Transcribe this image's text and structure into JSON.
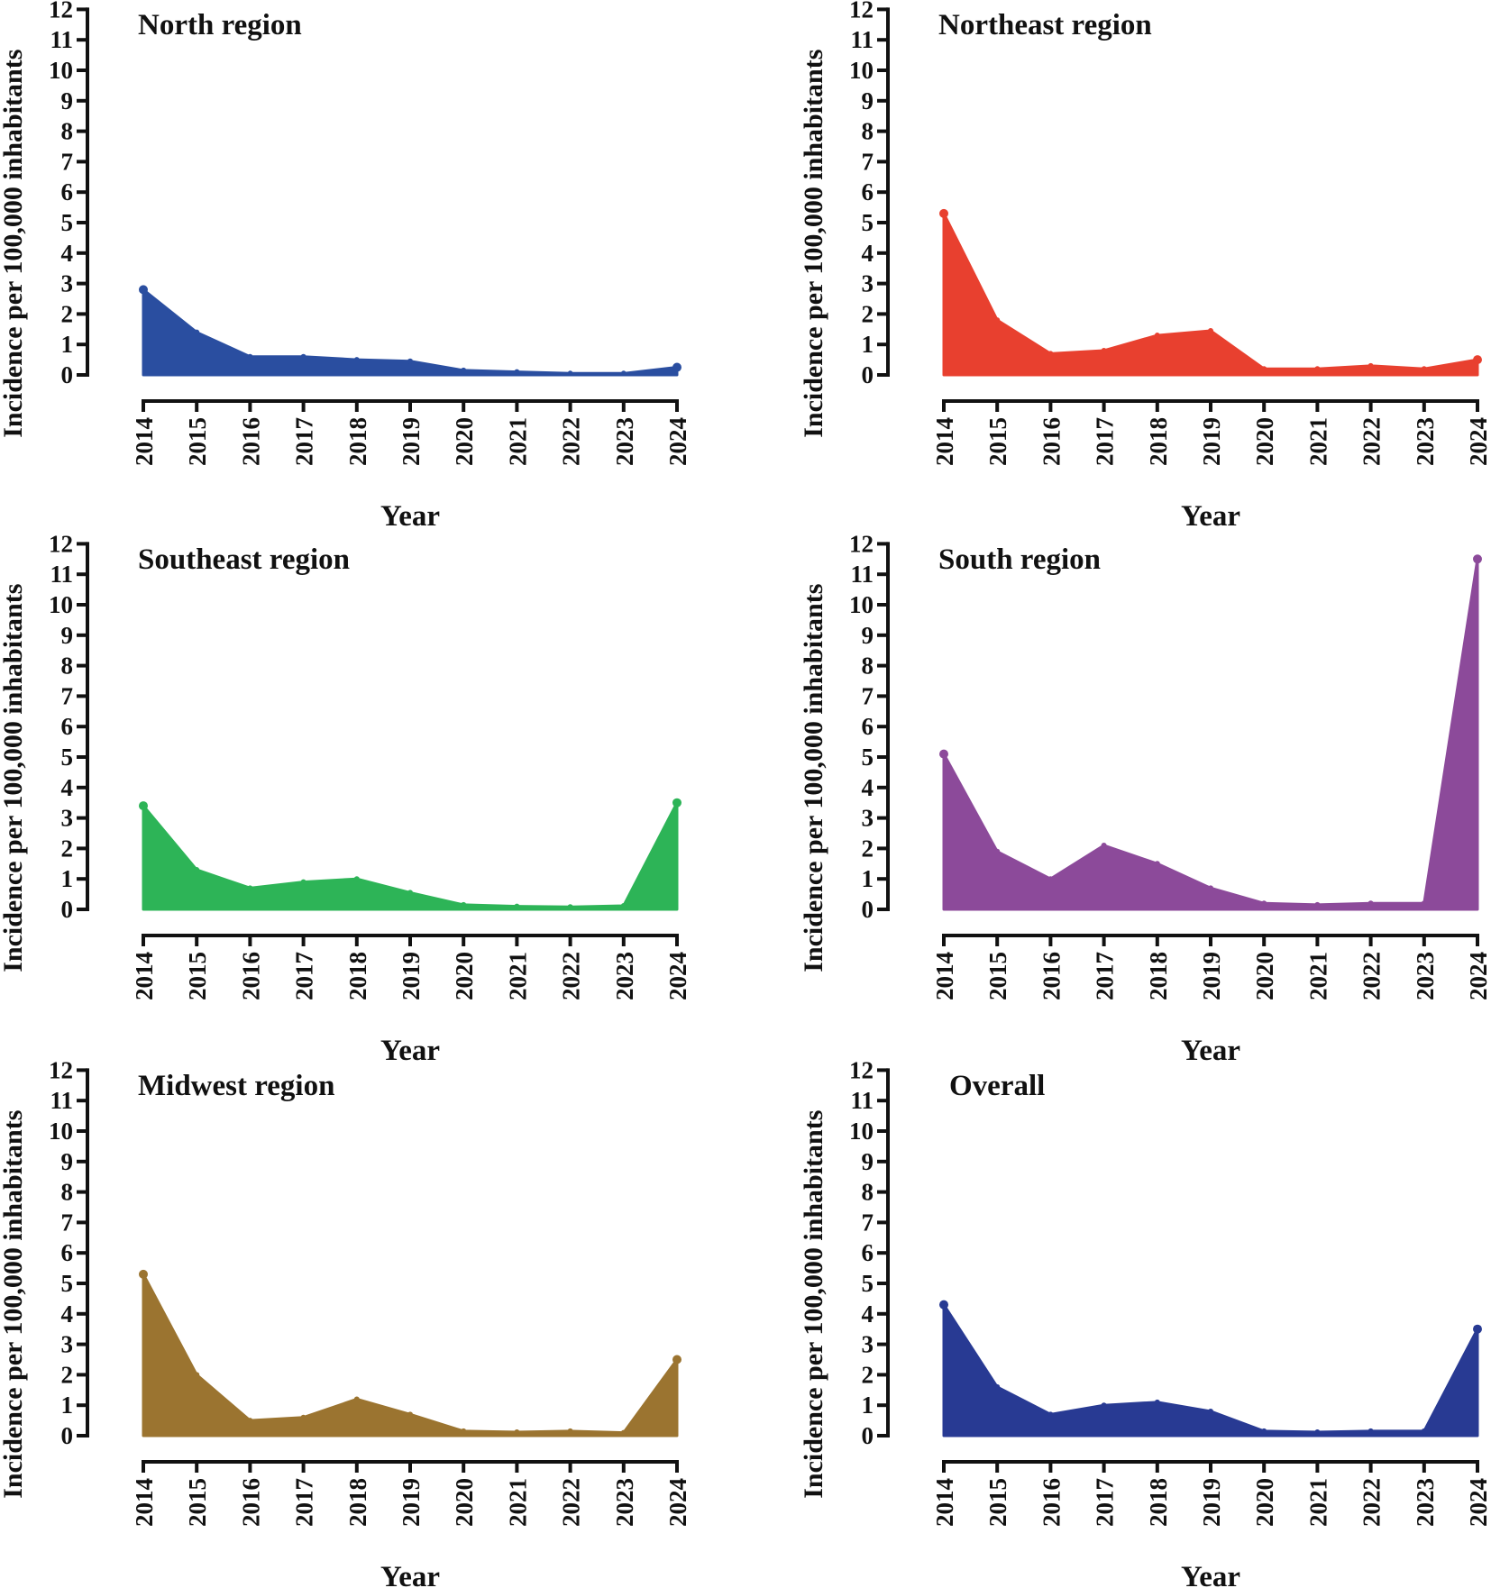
{
  "figure": {
    "y_axis_label": "Incidence per 100,000 inhabitants",
    "x_axis_label": "Year"
  },
  "chart_data": [
    {
      "type": "area",
      "title": "North region",
      "color": "#2a4ea0",
      "x": [
        "2014",
        "2015",
        "2016",
        "2017",
        "2018",
        "2019",
        "2020",
        "2021",
        "2022",
        "2023",
        "2024"
      ],
      "values": [
        2.8,
        1.4,
        0.6,
        0.6,
        0.5,
        0.45,
        0.15,
        0.1,
        0.05,
        0.05,
        0.25
      ],
      "xlabel": "Year",
      "ylabel": "Incidence per 100,000 inhabitants",
      "ylim": [
        0,
        12
      ],
      "yticks": [
        "0",
        "1",
        "2",
        "3",
        "4",
        "5",
        "6",
        "7",
        "8",
        "9",
        "10",
        "11",
        "12"
      ]
    },
    {
      "type": "area",
      "title": "Northeast region",
      "color": "#e8402f",
      "x": [
        "2014",
        "2015",
        "2016",
        "2017",
        "2018",
        "2019",
        "2020",
        "2021",
        "2022",
        "2023",
        "2024"
      ],
      "values": [
        5.3,
        1.8,
        0.7,
        0.8,
        1.3,
        1.45,
        0.2,
        0.2,
        0.3,
        0.2,
        0.5
      ],
      "xlabel": "Year",
      "ylabel": "Incidence per 100,000 inhabitants",
      "ylim": [
        0,
        12
      ],
      "yticks": [
        "0",
        "1",
        "2",
        "3",
        "4",
        "5",
        "6",
        "7",
        "8",
        "9",
        "10",
        "11",
        "12"
      ]
    },
    {
      "type": "area",
      "title": "Southeast region",
      "color": "#2db457",
      "x": [
        "2014",
        "2015",
        "2016",
        "2017",
        "2018",
        "2019",
        "2020",
        "2021",
        "2022",
        "2023",
        "2024"
      ],
      "values": [
        3.4,
        1.3,
        0.7,
        0.9,
        1.0,
        0.55,
        0.15,
        0.1,
        0.08,
        0.12,
        3.5
      ],
      "xlabel": "Year",
      "ylabel": "Incidence per 100,000 inhabitants",
      "ylim": [
        0,
        12
      ],
      "yticks": [
        "0",
        "1",
        "2",
        "3",
        "4",
        "5",
        "6",
        "7",
        "8",
        "9",
        "10",
        "11",
        "12"
      ]
    },
    {
      "type": "area",
      "title": "South region",
      "color": "#8c4a9a",
      "x": [
        "2014",
        "2015",
        "2016",
        "2017",
        "2018",
        "2019",
        "2020",
        "2021",
        "2022",
        "2023",
        "2024"
      ],
      "values": [
        5.1,
        1.9,
        1.0,
        2.1,
        1.5,
        0.7,
        0.2,
        0.15,
        0.2,
        0.2,
        11.5
      ],
      "xlabel": "Year",
      "ylabel": "Incidence per 100,000 inhabitants",
      "ylim": [
        0,
        12
      ],
      "yticks": [
        "0",
        "1",
        "2",
        "3",
        "4",
        "5",
        "6",
        "7",
        "8",
        "9",
        "10",
        "11",
        "12"
      ]
    },
    {
      "type": "area",
      "title": "Midwest region",
      "color": "#9b7430",
      "x": [
        "2014",
        "2015",
        "2016",
        "2017",
        "2018",
        "2019",
        "2020",
        "2021",
        "2022",
        "2023",
        "2024"
      ],
      "values": [
        5.3,
        2.0,
        0.5,
        0.6,
        1.2,
        0.7,
        0.15,
        0.12,
        0.15,
        0.1,
        2.5
      ],
      "xlabel": "Year",
      "ylabel": "Incidence per 100,000 inhabitants",
      "ylim": [
        0,
        12
      ],
      "yticks": [
        "0",
        "1",
        "2",
        "3",
        "4",
        "5",
        "6",
        "7",
        "8",
        "9",
        "10",
        "11",
        "12"
      ]
    },
    {
      "type": "area",
      "title": "Overall",
      "color": "#283a93",
      "x": [
        "2014",
        "2015",
        "2016",
        "2017",
        "2018",
        "2019",
        "2020",
        "2021",
        "2022",
        "2023",
        "2024"
      ],
      "values": [
        4.3,
        1.6,
        0.7,
        1.0,
        1.1,
        0.8,
        0.15,
        0.12,
        0.15,
        0.15,
        3.5
      ],
      "xlabel": "Year",
      "ylabel": "Incidence per 100,000 inhabitants",
      "ylim": [
        0,
        12
      ],
      "yticks": [
        "0",
        "1",
        "2",
        "3",
        "4",
        "5",
        "6",
        "7",
        "8",
        "9",
        "10",
        "11",
        "12"
      ]
    }
  ]
}
